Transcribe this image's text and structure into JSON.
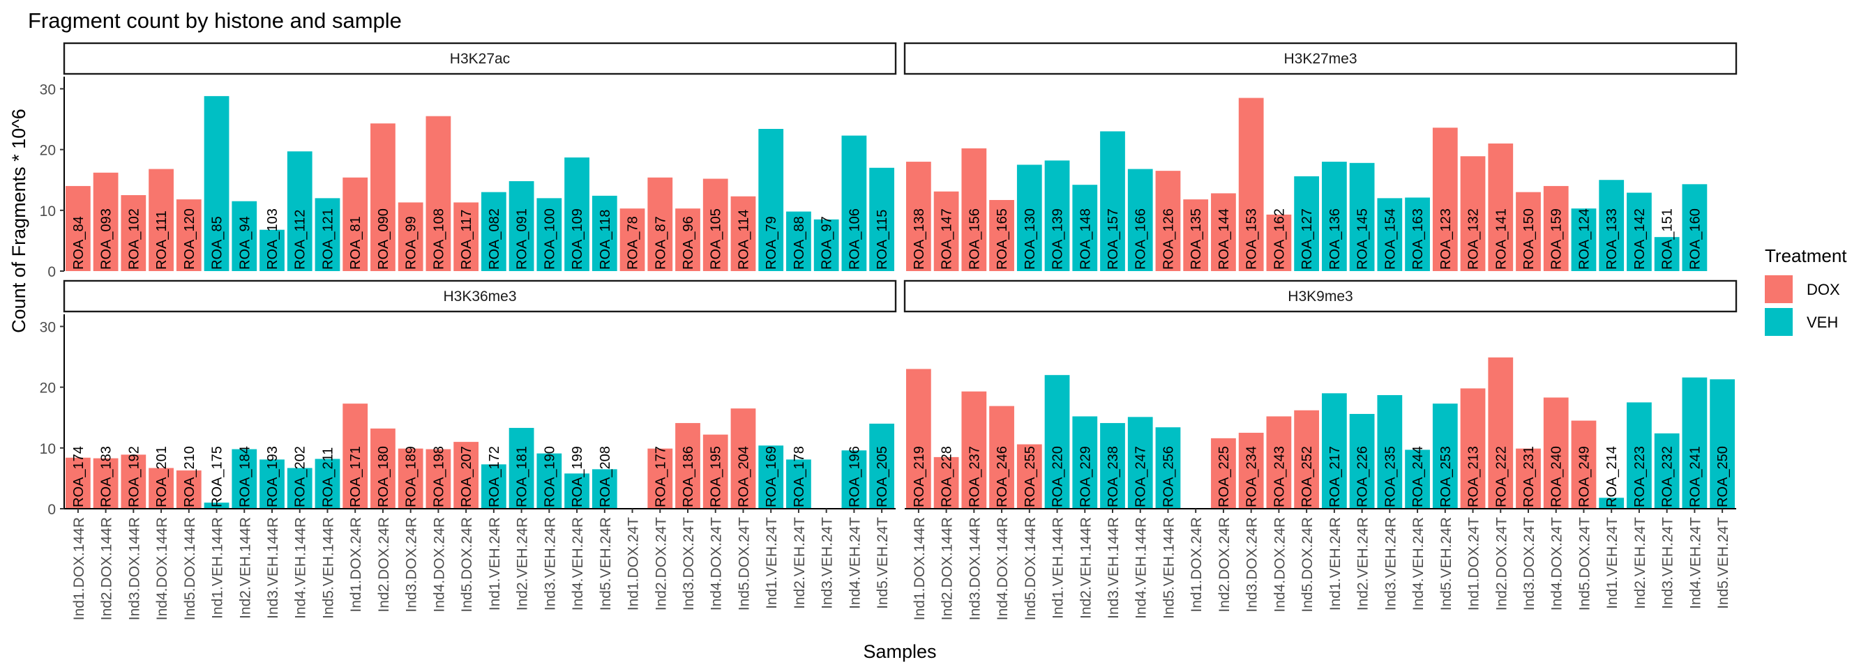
{
  "colors": {
    "DOX": "#F8766D",
    "VEH": "#00BFC4"
  },
  "chart_data": {
    "type": "bar",
    "title": "Fragment count by histone and sample",
    "xlabel": "Samples",
    "ylabel": "Count of Fragments * 10^6",
    "ylim": [
      0,
      32
    ],
    "yticks": [
      0,
      10,
      20,
      30
    ],
    "legend": {
      "title": "Treatment",
      "entries": [
        "DOX",
        "VEH"
      ],
      "position": "right"
    },
    "categories": [
      "Ind1.DOX.144R",
      "Ind2.DOX.144R",
      "Ind3.DOX.144R",
      "Ind4.DOX.144R",
      "Ind5.DOX.144R",
      "Ind1.VEH.144R",
      "Ind2.VEH.144R",
      "Ind3.VEH.144R",
      "Ind4.VEH.144R",
      "Ind5.VEH.144R",
      "Ind1.DOX.24R",
      "Ind2.DOX.24R",
      "Ind3.DOX.24R",
      "Ind4.DOX.24R",
      "Ind5.DOX.24R",
      "Ind1.VEH.24R",
      "Ind2.VEH.24R",
      "Ind3.VEH.24R",
      "Ind4.VEH.24R",
      "Ind5.VEH.24R",
      "Ind1.DOX.24T",
      "Ind2.DOX.24T",
      "Ind3.DOX.24T",
      "Ind4.DOX.24T",
      "Ind5.DOX.24T",
      "Ind1.VEH.24T",
      "Ind2.VEH.24T",
      "Ind3.VEH.24T",
      "Ind4.VEH.24T",
      "Ind5.VEH.24T"
    ],
    "panels": [
      {
        "histone": "H3K27ac",
        "bars": [
          {
            "x": "Ind1.DOX.144R",
            "t": "DOX",
            "y": 14,
            "label": "ROA_84"
          },
          {
            "x": "Ind2.DOX.144R",
            "t": "DOX",
            "y": 16.2,
            "label": "ROA_093"
          },
          {
            "x": "Ind3.DOX.144R",
            "t": "DOX",
            "y": 12.5,
            "label": "ROA_102"
          },
          {
            "x": "Ind4.DOX.144R",
            "t": "DOX",
            "y": 16.8,
            "label": "ROA_111"
          },
          {
            "x": "Ind5.DOX.144R",
            "t": "DOX",
            "y": 11.8,
            "label": "ROA_120"
          },
          {
            "x": "Ind1.VEH.144R",
            "t": "VEH",
            "y": 28.8,
            "label": "ROA_85"
          },
          {
            "x": "Ind2.VEH.144R",
            "t": "VEH",
            "y": 11.5,
            "label": "ROA_94"
          },
          {
            "x": "Ind3.VEH.144R",
            "t": "VEH",
            "y": 6.8,
            "label": "ROA_103"
          },
          {
            "x": "Ind4.VEH.144R",
            "t": "VEH",
            "y": 19.7,
            "label": "ROA_112"
          },
          {
            "x": "Ind5.VEH.144R",
            "t": "VEH",
            "y": 12,
            "label": "ROA_121"
          },
          {
            "x": "Ind1.DOX.24R",
            "t": "DOX",
            "y": 15.4,
            "label": "ROA_81"
          },
          {
            "x": "Ind2.DOX.24R",
            "t": "DOX",
            "y": 24.3,
            "label": "ROA_090"
          },
          {
            "x": "Ind3.DOX.24R",
            "t": "DOX",
            "y": 11.3,
            "label": "ROA_99"
          },
          {
            "x": "Ind4.DOX.24R",
            "t": "DOX",
            "y": 25.5,
            "label": "ROA_108"
          },
          {
            "x": "Ind5.DOX.24R",
            "t": "DOX",
            "y": 11.3,
            "label": "ROA_117"
          },
          {
            "x": "Ind1.VEH.24R",
            "t": "VEH",
            "y": 13,
            "label": "ROA_082"
          },
          {
            "x": "Ind2.VEH.24R",
            "t": "VEH",
            "y": 14.8,
            "label": "ROA_091"
          },
          {
            "x": "Ind3.VEH.24R",
            "t": "VEH",
            "y": 12,
            "label": "ROA_100"
          },
          {
            "x": "Ind4.VEH.24R",
            "t": "VEH",
            "y": 18.7,
            "label": "ROA_109"
          },
          {
            "x": "Ind5.VEH.24R",
            "t": "VEH",
            "y": 12.4,
            "label": "ROA_118"
          },
          {
            "x": "Ind1.DOX.24T",
            "t": "DOX",
            "y": 10.3,
            "label": "ROA_78"
          },
          {
            "x": "Ind2.DOX.24T",
            "t": "DOX",
            "y": 15.4,
            "label": "ROA_87"
          },
          {
            "x": "Ind3.DOX.24T",
            "t": "DOX",
            "y": 10.3,
            "label": "ROA_96"
          },
          {
            "x": "Ind4.DOX.24T",
            "t": "DOX",
            "y": 15.2,
            "label": "ROA_105"
          },
          {
            "x": "Ind5.DOX.24T",
            "t": "DOX",
            "y": 12.3,
            "label": "ROA_114"
          },
          {
            "x": "Ind1.VEH.24T",
            "t": "VEH",
            "y": 23.4,
            "label": "ROA_79"
          },
          {
            "x": "Ind2.VEH.24T",
            "t": "VEH",
            "y": 9.8,
            "label": "ROA_88"
          },
          {
            "x": "Ind3.VEH.24T",
            "t": "VEH",
            "y": 8.5,
            "label": "ROA_97"
          },
          {
            "x": "Ind4.VEH.24T",
            "t": "VEH",
            "y": 22.3,
            "label": "ROA_106"
          },
          {
            "x": "Ind5.VEH.24T",
            "t": "VEH",
            "y": 17,
            "label": "ROA_115"
          }
        ]
      },
      {
        "histone": "H3K27me3",
        "bars": [
          {
            "x": "Ind1.DOX.144R",
            "t": "DOX",
            "y": 18,
            "label": "ROA_138"
          },
          {
            "x": "Ind2.DOX.144R",
            "t": "DOX",
            "y": 13.1,
            "label": "ROA_147"
          },
          {
            "x": "Ind3.DOX.144R",
            "t": "DOX",
            "y": 20.2,
            "label": "ROA_156"
          },
          {
            "x": "Ind4.DOX.144R",
            "t": "DOX",
            "y": 11.7,
            "label": "ROA_165"
          },
          {
            "x": "Ind5.DOX.144R",
            "t": "VEH",
            "y": 17.5,
            "label": "ROA_130"
          },
          {
            "x": "Ind1.VEH.144R",
            "t": "VEH",
            "y": 18.2,
            "label": "ROA_139"
          },
          {
            "x": "Ind2.VEH.144R",
            "t": "VEH",
            "y": 14.2,
            "label": "ROA_148"
          },
          {
            "x": "Ind3.VEH.144R",
            "t": "VEH",
            "y": 23,
            "label": "ROA_157"
          },
          {
            "x": "Ind4.VEH.144R",
            "t": "VEH",
            "y": 16.8,
            "label": "ROA_166"
          },
          {
            "x": "Ind5.VEH.144R",
            "t": "DOX",
            "y": 16.5,
            "label": "ROA_126"
          },
          {
            "x": "Ind1.DOX.24R",
            "t": "DOX",
            "y": 11.8,
            "label": "ROA_135"
          },
          {
            "x": "Ind2.DOX.24R",
            "t": "DOX",
            "y": 12.8,
            "label": "ROA_144"
          },
          {
            "x": "Ind3.DOX.24R",
            "t": "DOX",
            "y": 28.5,
            "label": "ROA_153"
          },
          {
            "x": "Ind4.DOX.24R",
            "t": "DOX",
            "y": 9.3,
            "label": "ROA_162"
          },
          {
            "x": "Ind5.DOX.24R",
            "t": "VEH",
            "y": 15.6,
            "label": "ROA_127"
          },
          {
            "x": "Ind1.VEH.24R",
            "t": "VEH",
            "y": 18,
            "label": "ROA_136"
          },
          {
            "x": "Ind2.VEH.24R",
            "t": "VEH",
            "y": 17.8,
            "label": "ROA_145"
          },
          {
            "x": "Ind3.VEH.24R",
            "t": "VEH",
            "y": 12,
            "label": "ROA_154"
          },
          {
            "x": "Ind4.VEH.24R",
            "t": "VEH",
            "y": 12.1,
            "label": "ROA_163"
          },
          {
            "x": "Ind5.VEH.24R",
            "t": "DOX",
            "y": 23.6,
            "label": "ROA_123"
          },
          {
            "x": "Ind1.DOX.24T",
            "t": "DOX",
            "y": 18.9,
            "label": "ROA_132"
          },
          {
            "x": "Ind2.DOX.24T",
            "t": "DOX",
            "y": 21,
            "label": "ROA_141"
          },
          {
            "x": "Ind3.DOX.24T",
            "t": "DOX",
            "y": 13,
            "label": "ROA_150"
          },
          {
            "x": "Ind4.DOX.24T",
            "t": "DOX",
            "y": 14,
            "label": "ROA_159"
          },
          {
            "x": "Ind5.DOX.24T",
            "t": "VEH",
            "y": 10.3,
            "label": "ROA_124"
          },
          {
            "x": "Ind1.VEH.24T",
            "t": "VEH",
            "y": 15,
            "label": "ROA_133"
          },
          {
            "x": "Ind2.VEH.24T",
            "t": "VEH",
            "y": 12.9,
            "label": "ROA_142"
          },
          {
            "x": "Ind3.VEH.24T",
            "t": "VEH",
            "y": 5.6,
            "label": "ROA_151"
          },
          {
            "x": "Ind4.VEH.24T",
            "t": "VEH",
            "y": 14.3,
            "label": "ROA_160"
          },
          {
            "x": "Ind5.VEH.24T",
            "t": "VEH",
            "y": 0,
            "label": ""
          }
        ]
      },
      {
        "histone": "H3K36me3",
        "bars": [
          {
            "x": "Ind1.DOX.144R",
            "t": "DOX",
            "y": 8.4,
            "label": "ROA_174"
          },
          {
            "x": "Ind2.DOX.144R",
            "t": "DOX",
            "y": 8.3,
            "label": "ROA_183"
          },
          {
            "x": "Ind3.DOX.144R",
            "t": "DOX",
            "y": 8.9,
            "label": "ROA_192"
          },
          {
            "x": "Ind4.DOX.144R",
            "t": "DOX",
            "y": 6.7,
            "label": "ROA_201"
          },
          {
            "x": "Ind5.DOX.144R",
            "t": "DOX",
            "y": 6.3,
            "label": "ROA_210"
          },
          {
            "x": "Ind1.VEH.144R",
            "t": "VEH",
            "y": 1,
            "label": "ROA_175"
          },
          {
            "x": "Ind2.VEH.144R",
            "t": "VEH",
            "y": 9.8,
            "label": "ROA_184"
          },
          {
            "x": "Ind3.VEH.144R",
            "t": "VEH",
            "y": 8.1,
            "label": "ROA_193"
          },
          {
            "x": "Ind4.VEH.144R",
            "t": "VEH",
            "y": 6.7,
            "label": "ROA_202"
          },
          {
            "x": "Ind5.VEH.144R",
            "t": "VEH",
            "y": 8.2,
            "label": "ROA_211"
          },
          {
            "x": "Ind1.DOX.24R",
            "t": "DOX",
            "y": 17.3,
            "label": "ROA_171"
          },
          {
            "x": "Ind2.DOX.24R",
            "t": "DOX",
            "y": 13.2,
            "label": "ROA_180"
          },
          {
            "x": "Ind3.DOX.24R",
            "t": "DOX",
            "y": 9.9,
            "label": "ROA_189"
          },
          {
            "x": "Ind4.DOX.24R",
            "t": "DOX",
            "y": 9.8,
            "label": "ROA_198"
          },
          {
            "x": "Ind5.DOX.24R",
            "t": "DOX",
            "y": 11,
            "label": "ROA_207"
          },
          {
            "x": "Ind1.VEH.24R",
            "t": "VEH",
            "y": 7.3,
            "label": "ROA_172"
          },
          {
            "x": "Ind2.VEH.24R",
            "t": "VEH",
            "y": 13.3,
            "label": "ROA_181"
          },
          {
            "x": "Ind3.VEH.24R",
            "t": "VEH",
            "y": 9.1,
            "label": "ROA_190"
          },
          {
            "x": "Ind4.VEH.24R",
            "t": "VEH",
            "y": 5.8,
            "label": "ROA_199"
          },
          {
            "x": "Ind5.VEH.24R",
            "t": "VEH",
            "y": 6.5,
            "label": "ROA_208"
          },
          {
            "x": "Ind1.DOX.24T",
            "t": "DOX",
            "y": 0,
            "label": ""
          },
          {
            "x": "Ind2.DOX.24T",
            "t": "DOX",
            "y": 9.9,
            "label": "ROA_177"
          },
          {
            "x": "Ind3.DOX.24T",
            "t": "DOX",
            "y": 14.1,
            "label": "ROA_186"
          },
          {
            "x": "Ind4.DOX.24T",
            "t": "DOX",
            "y": 12.2,
            "label": "ROA_195"
          },
          {
            "x": "Ind5.DOX.24T",
            "t": "DOX",
            "y": 16.5,
            "label": "ROA_204"
          },
          {
            "x": "Ind1.VEH.24T",
            "t": "VEH",
            "y": 10.4,
            "label": "ROA_169"
          },
          {
            "x": "Ind2.VEH.24T",
            "t": "VEH",
            "y": 8.1,
            "label": "ROA_178"
          },
          {
            "x": "Ind3.VEH.24T",
            "t": "VEH",
            "y": 0,
            "label": ""
          },
          {
            "x": "Ind4.VEH.24T",
            "t": "VEH",
            "y": 9.6,
            "label": "ROA_196"
          },
          {
            "x": "Ind5.VEH.24T",
            "t": "VEH",
            "y": 14,
            "label": "ROA_205"
          }
        ]
      },
      {
        "histone": "H3K9me3",
        "bars": [
          {
            "x": "Ind1.DOX.144R",
            "t": "DOX",
            "y": 23,
            "label": "ROA_219"
          },
          {
            "x": "Ind2.DOX.144R",
            "t": "DOX",
            "y": 8.5,
            "label": "ROA_228"
          },
          {
            "x": "Ind3.DOX.144R",
            "t": "DOX",
            "y": 19.3,
            "label": "ROA_237"
          },
          {
            "x": "Ind4.DOX.144R",
            "t": "DOX",
            "y": 16.9,
            "label": "ROA_246"
          },
          {
            "x": "Ind5.DOX.144R",
            "t": "DOX",
            "y": 10.6,
            "label": "ROA_255"
          },
          {
            "x": "Ind1.VEH.144R",
            "t": "VEH",
            "y": 22,
            "label": "ROA_220"
          },
          {
            "x": "Ind2.VEH.144R",
            "t": "VEH",
            "y": 15.2,
            "label": "ROA_229"
          },
          {
            "x": "Ind3.VEH.144R",
            "t": "VEH",
            "y": 14.1,
            "label": "ROA_238"
          },
          {
            "x": "Ind4.VEH.144R",
            "t": "VEH",
            "y": 15.1,
            "label": "ROA_247"
          },
          {
            "x": "Ind5.VEH.144R",
            "t": "VEH",
            "y": 13.4,
            "label": "ROA_256"
          },
          {
            "x": "Ind1.DOX.24R",
            "t": "DOX",
            "y": 0,
            "label": ""
          },
          {
            "x": "Ind2.DOX.24R",
            "t": "DOX",
            "y": 11.6,
            "label": "ROA_225"
          },
          {
            "x": "Ind3.DOX.24R",
            "t": "DOX",
            "y": 12.5,
            "label": "ROA_234"
          },
          {
            "x": "Ind4.DOX.24R",
            "t": "DOX",
            "y": 15.2,
            "label": "ROA_243"
          },
          {
            "x": "Ind5.DOX.24R",
            "t": "DOX",
            "y": 16.2,
            "label": "ROA_252"
          },
          {
            "x": "Ind1.VEH.24R",
            "t": "VEH",
            "y": 19,
            "label": "ROA_217"
          },
          {
            "x": "Ind2.VEH.24R",
            "t": "VEH",
            "y": 15.6,
            "label": "ROA_226"
          },
          {
            "x": "Ind3.VEH.24R",
            "t": "VEH",
            "y": 18.7,
            "label": "ROA_235"
          },
          {
            "x": "Ind4.VEH.24R",
            "t": "VEH",
            "y": 9.7,
            "label": "ROA_244"
          },
          {
            "x": "Ind5.VEH.24R",
            "t": "VEH",
            "y": 17.3,
            "label": "ROA_253"
          },
          {
            "x": "Ind1.DOX.24T",
            "t": "DOX",
            "y": 19.8,
            "label": "ROA_213"
          },
          {
            "x": "Ind2.DOX.24T",
            "t": "DOX",
            "y": 24.9,
            "label": "ROA_222"
          },
          {
            "x": "Ind3.DOX.24T",
            "t": "DOX",
            "y": 9.9,
            "label": "ROA_231"
          },
          {
            "x": "Ind4.DOX.24T",
            "t": "DOX",
            "y": 18.3,
            "label": "ROA_240"
          },
          {
            "x": "Ind5.DOX.24T",
            "t": "DOX",
            "y": 14.5,
            "label": "ROA_249"
          },
          {
            "x": "Ind1.VEH.24T",
            "t": "VEH",
            "y": 1.8,
            "label": "ROA_214"
          },
          {
            "x": "Ind2.VEH.24T",
            "t": "VEH",
            "y": 17.5,
            "label": "ROA_223"
          },
          {
            "x": "Ind3.VEH.24T",
            "t": "VEH",
            "y": 12.4,
            "label": "ROA_232"
          },
          {
            "x": "Ind4.VEH.24T",
            "t": "VEH",
            "y": 21.6,
            "label": "ROA_241"
          },
          {
            "x": "Ind5.VEH.24T",
            "t": "VEH",
            "y": 21.3,
            "label": "ROA_250"
          }
        ]
      }
    ]
  }
}
